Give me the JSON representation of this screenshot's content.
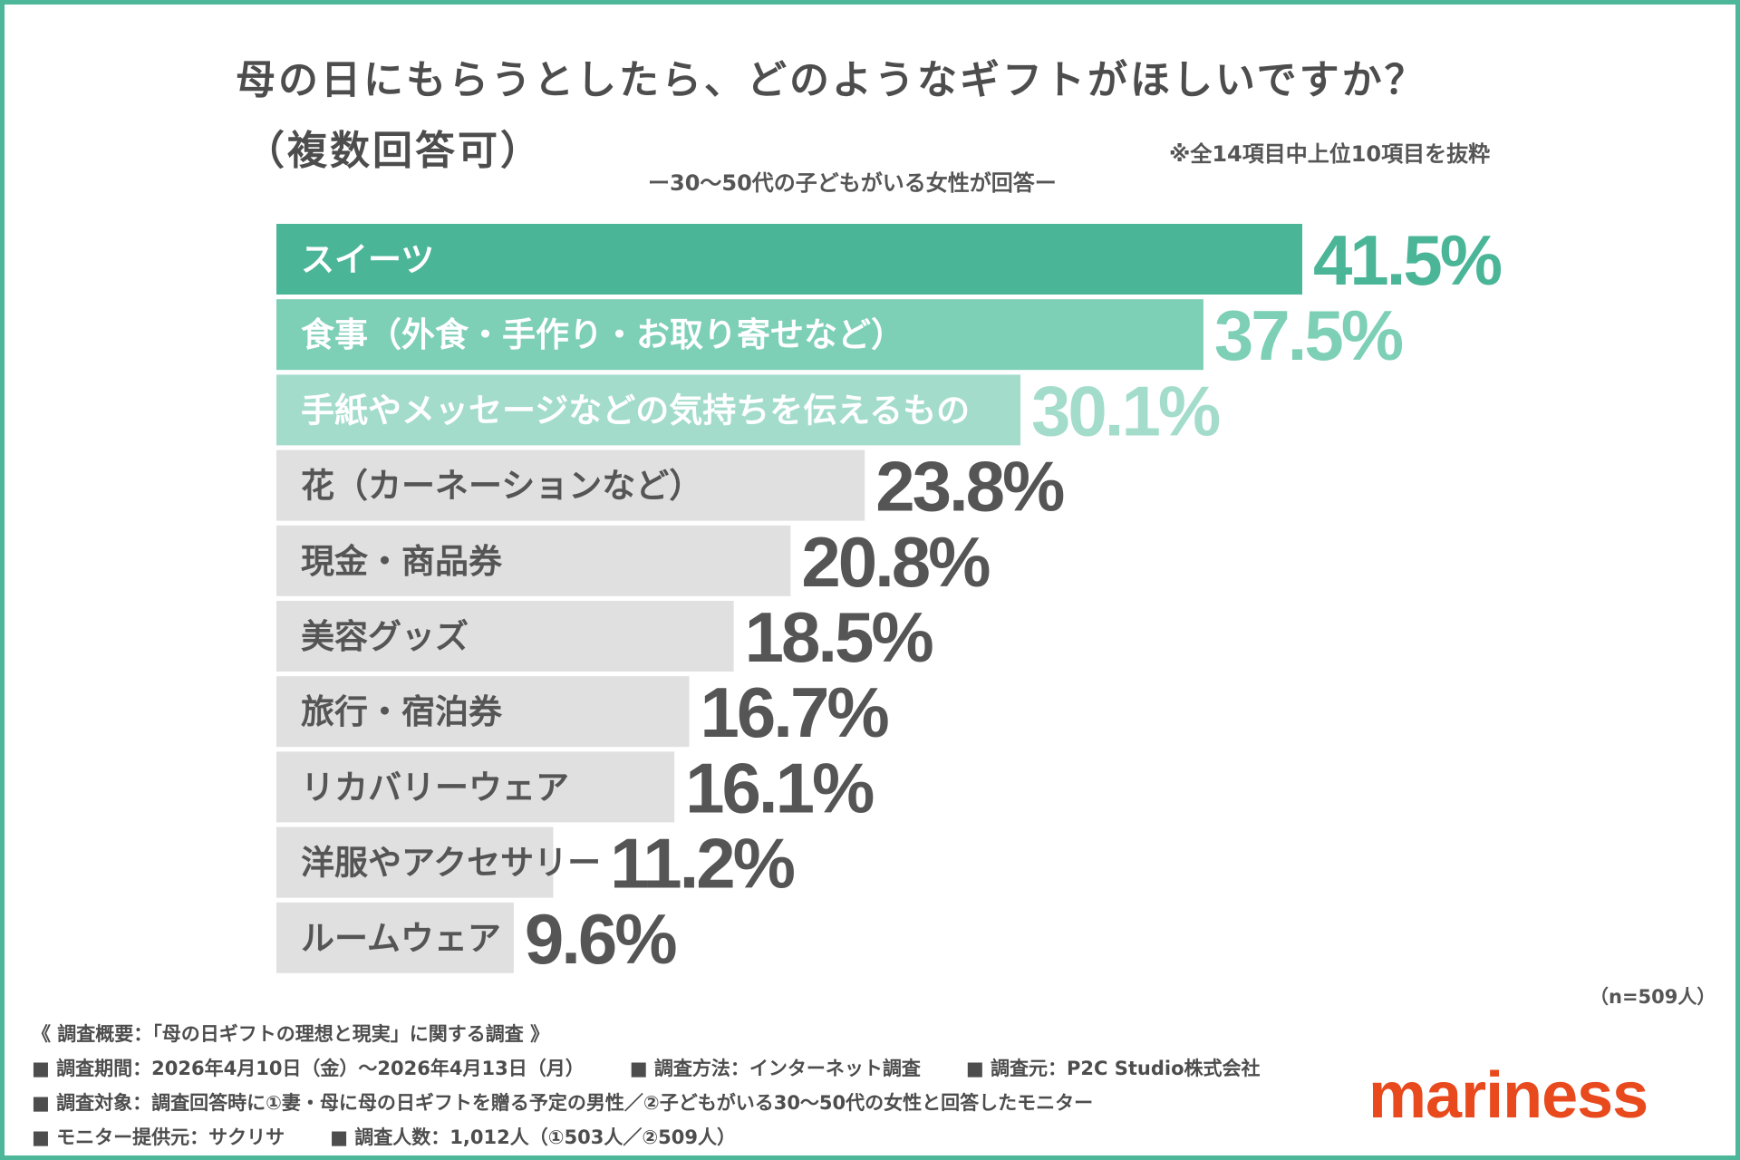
{
  "chart_data": {
    "type": "bar",
    "orientation": "horizontal",
    "title": "母の日にもらうとしたら、どのようなギフトがほしいですか？",
    "title_line2": "（複数回答可）",
    "subtitle": "ー30〜50代の子どもがいる女性が回答ー",
    "note": "※全14項目中上位10項目を抜粋",
    "categories": [
      "スイーツ",
      "食事（外食・手作り・お取り寄せなど）",
      "手紙やメッセージなどの気持ちを伝えるもの",
      "花（カーネーションなど）",
      "現金・商品券",
      "美容グッズ",
      "旅行・宿泊券",
      "リカバリーウェア",
      "洋服やアクセサリー",
      "ルームウェア"
    ],
    "values": [
      41.5,
      37.5,
      30.1,
      23.8,
      20.8,
      18.5,
      16.7,
      16.1,
      11.2,
      9.6
    ],
    "value_labels": [
      "41.5%",
      "37.5%",
      "30.1%",
      "23.8%",
      "20.8%",
      "18.5%",
      "16.7%",
      "16.1%",
      "11.2%",
      "9.6%"
    ],
    "unit": "%",
    "xlim": [
      0,
      41.5
    ],
    "grid": false,
    "legend": "none",
    "colors": {
      "bar_1": "#4bb598",
      "bar_2": "#7dcfb6",
      "bar_3": "#a4dccb",
      "bar_other": "#e0e0e0",
      "value_1": "#4bb598",
      "value_2": "#7dcfb6",
      "value_3": "#a4dccb",
      "value_other": "#555555",
      "label_top": "#ffffff",
      "label_other": "#555555"
    }
  },
  "sample_size": "（n=509人）",
  "survey": {
    "header": "《 調査概要：「母の日ギフトの理想と現実」に関する調査 》",
    "period": "■ 調査期間：2026年4月10日（金）〜2026年4月13日（月）",
    "method": "■ 調査方法：インターネット調査",
    "source": "■ 調査元：P2C Studio株式会社",
    "target": "■ 調査対象：調査回答時に①妻・母に母の日ギフトを贈る予定の男性／②子どもがいる30〜50代の女性と回答したモニター",
    "provider": "■ モニター提供元：サクリサ",
    "count": "■ 調査人数：1,012人（①503人／②509人）"
  },
  "logo": "mariness"
}
